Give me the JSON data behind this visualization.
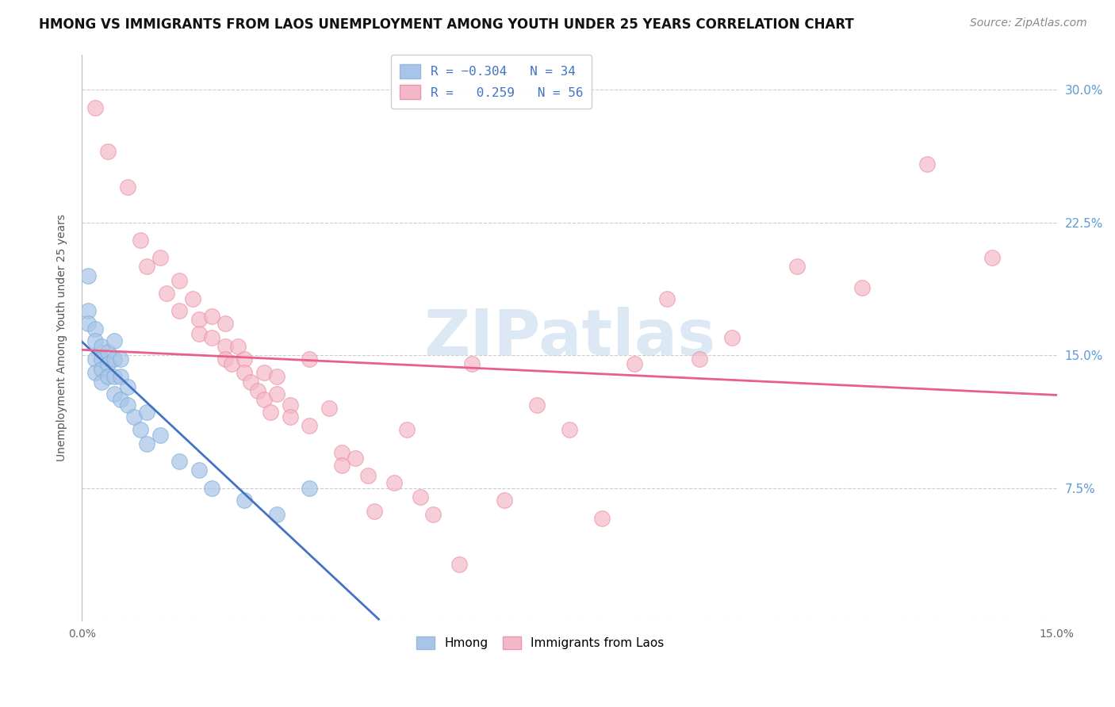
{
  "title": "HMONG VS IMMIGRANTS FROM LAOS UNEMPLOYMENT AMONG YOUTH UNDER 25 YEARS CORRELATION CHART",
  "source": "Source: ZipAtlas.com",
  "ylabel": "Unemployment Among Youth under 25 years",
  "xlim": [
    0.0,
    0.15
  ],
  "ylim": [
    0.0,
    0.32
  ],
  "watermark": "ZIPatlas",
  "hmong_color": "#a8c4e8",
  "hmong_edge": "#7bafd4",
  "laos_color": "#f4b8c8",
  "laos_edge": "#e890a8",
  "hmong_line_color": "#4472c4",
  "laos_line_color": "#e8608a",
  "grid_color": "#cccccc",
  "background_color": "#ffffff",
  "title_fontsize": 12,
  "axis_label_fontsize": 10,
  "tick_fontsize": 10,
  "source_fontsize": 10,
  "hmong_scatter": [
    [
      0.001,
      0.195
    ],
    [
      0.001,
      0.175
    ],
    [
      0.001,
      0.168
    ],
    [
      0.002,
      0.165
    ],
    [
      0.002,
      0.158
    ],
    [
      0.002,
      0.148
    ],
    [
      0.002,
      0.14
    ],
    [
      0.003,
      0.155
    ],
    [
      0.003,
      0.148
    ],
    [
      0.003,
      0.142
    ],
    [
      0.003,
      0.135
    ],
    [
      0.004,
      0.152
    ],
    [
      0.004,
      0.145
    ],
    [
      0.004,
      0.138
    ],
    [
      0.005,
      0.158
    ],
    [
      0.005,
      0.148
    ],
    [
      0.005,
      0.138
    ],
    [
      0.005,
      0.128
    ],
    [
      0.006,
      0.148
    ],
    [
      0.006,
      0.138
    ],
    [
      0.006,
      0.125
    ],
    [
      0.007,
      0.132
    ],
    [
      0.007,
      0.122
    ],
    [
      0.008,
      0.115
    ],
    [
      0.009,
      0.108
    ],
    [
      0.01,
      0.118
    ],
    [
      0.01,
      0.1
    ],
    [
      0.012,
      0.105
    ],
    [
      0.015,
      0.09
    ],
    [
      0.018,
      0.085
    ],
    [
      0.02,
      0.075
    ],
    [
      0.025,
      0.068
    ],
    [
      0.03,
      0.06
    ],
    [
      0.035,
      0.075
    ]
  ],
  "laos_scatter": [
    [
      0.002,
      0.29
    ],
    [
      0.004,
      0.265
    ],
    [
      0.007,
      0.245
    ],
    [
      0.009,
      0.215
    ],
    [
      0.01,
      0.2
    ],
    [
      0.012,
      0.205
    ],
    [
      0.013,
      0.185
    ],
    [
      0.015,
      0.192
    ],
    [
      0.015,
      0.175
    ],
    [
      0.017,
      0.182
    ],
    [
      0.018,
      0.17
    ],
    [
      0.018,
      0.162
    ],
    [
      0.02,
      0.172
    ],
    [
      0.02,
      0.16
    ],
    [
      0.022,
      0.168
    ],
    [
      0.022,
      0.155
    ],
    [
      0.022,
      0.148
    ],
    [
      0.023,
      0.145
    ],
    [
      0.024,
      0.155
    ],
    [
      0.025,
      0.148
    ],
    [
      0.025,
      0.14
    ],
    [
      0.026,
      0.135
    ],
    [
      0.027,
      0.13
    ],
    [
      0.028,
      0.14
    ],
    [
      0.028,
      0.125
    ],
    [
      0.029,
      0.118
    ],
    [
      0.03,
      0.138
    ],
    [
      0.03,
      0.128
    ],
    [
      0.032,
      0.122
    ],
    [
      0.032,
      0.115
    ],
    [
      0.035,
      0.148
    ],
    [
      0.035,
      0.11
    ],
    [
      0.038,
      0.12
    ],
    [
      0.04,
      0.095
    ],
    [
      0.04,
      0.088
    ],
    [
      0.042,
      0.092
    ],
    [
      0.044,
      0.082
    ],
    [
      0.045,
      0.062
    ],
    [
      0.048,
      0.078
    ],
    [
      0.05,
      0.108
    ],
    [
      0.052,
      0.07
    ],
    [
      0.054,
      0.06
    ],
    [
      0.058,
      0.032
    ],
    [
      0.06,
      0.145
    ],
    [
      0.065,
      0.068
    ],
    [
      0.07,
      0.122
    ],
    [
      0.075,
      0.108
    ],
    [
      0.08,
      0.058
    ],
    [
      0.085,
      0.145
    ],
    [
      0.09,
      0.182
    ],
    [
      0.095,
      0.148
    ],
    [
      0.1,
      0.16
    ],
    [
      0.11,
      0.2
    ],
    [
      0.12,
      0.188
    ],
    [
      0.13,
      0.258
    ],
    [
      0.14,
      0.205
    ]
  ]
}
